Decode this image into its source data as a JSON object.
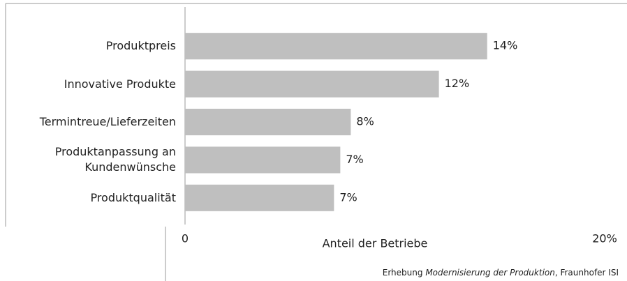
{
  "chart_data": {
    "type": "bar",
    "orientation": "horizontal",
    "categories": [
      "Produktpreis",
      "Innovative Produkte",
      "Termintreue/Lieferzeiten",
      "Produktanpassung an Kundenwünsche",
      "Produktqualität"
    ],
    "values": [
      14.4,
      12.1,
      7.9,
      7.4,
      7.1
    ],
    "value_labels": [
      "14%",
      "12%",
      "8%",
      "7%",
      "7%"
    ],
    "color": "#bfbfbf",
    "xlim": [
      0,
      20
    ],
    "xticks": [
      0,
      {
        "value": 20,
        "label": "20%"
      }
    ],
    "x_label": "Anteil der Betriebe",
    "source": {
      "prefix": "Erhebung ",
      "italic": "Modernisierung der Produktion",
      "suffix": ", Fraunhofer ISI"
    }
  }
}
